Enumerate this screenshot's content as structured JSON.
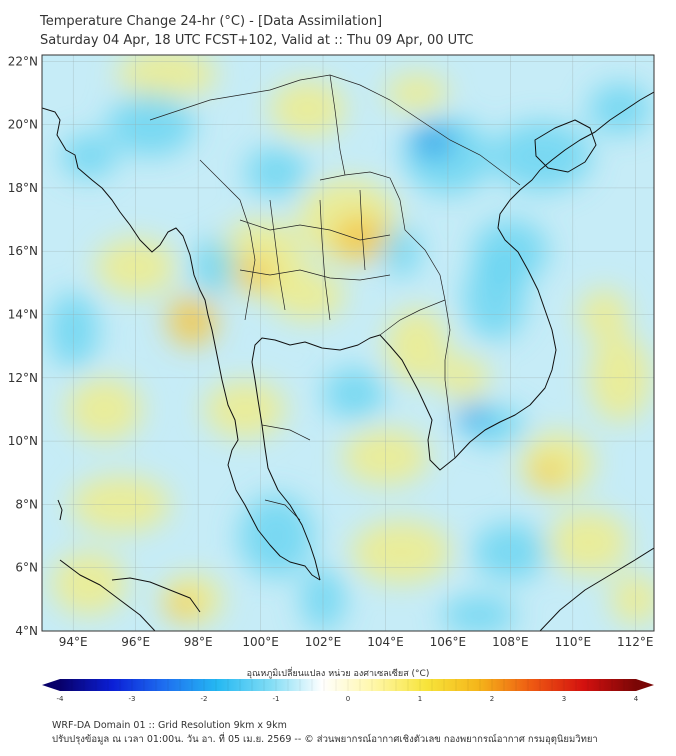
{
  "header": {
    "title_line1": "Temperature Change 24-hr (°C) - [Data Assimilation]",
    "title_line2": "Saturday 04 Apr, 18 UTC FCST+102, Valid at :: Thu 09 Apr, 00 UTC"
  },
  "map": {
    "lat_labels": [
      "22°N",
      "20°N",
      "18°N",
      "16°N",
      "14°N",
      "12°N",
      "10°N",
      "8°N",
      "6°N",
      "4°N"
    ],
    "lat_values": [
      22,
      20,
      18,
      16,
      14,
      12,
      10,
      8,
      6,
      4
    ],
    "lon_labels": [
      "94°E",
      "96°E",
      "98°E",
      "100°E",
      "102°E",
      "104°E",
      "106°E",
      "108°E",
      "110°E",
      "112°E"
    ],
    "lon_values": [
      94,
      96,
      98,
      100,
      102,
      104,
      106,
      108,
      110,
      112
    ],
    "extent": {
      "lon_min": 93,
      "lon_max": 112.6,
      "lat_min": 4,
      "lat_max": 22.2
    },
    "colors": {
      "ocean_base": "#c6ecf7",
      "warm": "#f5ec7a",
      "warmer": "#f5c542",
      "cool": "#5fd2f0",
      "cooler": "#2a9ee8",
      "coast": "#111111"
    }
  },
  "colorbar": {
    "label": "อุณหภูมิเปลี่ยนแปลง หน่วย องศาเซลเซียส (°C)",
    "tick_labels": [
      "-4",
      "-3",
      "-2",
      "-1",
      "0",
      "1",
      "2",
      "3",
      "4"
    ],
    "min": -4,
    "max": 4,
    "colors": [
      "#08006a",
      "#0b1fd6",
      "#1e6ff0",
      "#25b8f2",
      "#7fdcf5",
      "#ffffff",
      "#fff7a8",
      "#f7e43a",
      "#f5b51a",
      "#ee5a12",
      "#d4110f",
      "#7a0606"
    ]
  },
  "footer": {
    "line1": "WRF-DA Domain 01 :: Grid Resolution 9km x 9km",
    "line2": "ปรับปรุงข้อมูล ณ เวลา 01:00น. วัน อา. ที่ 05 เม.ย. 2569 -- © ส่วนพยากรณ์อากาศเชิงตัวเลข กองพยากรณ์อากาศ กรมอุตุนิยมวิทยา"
  }
}
